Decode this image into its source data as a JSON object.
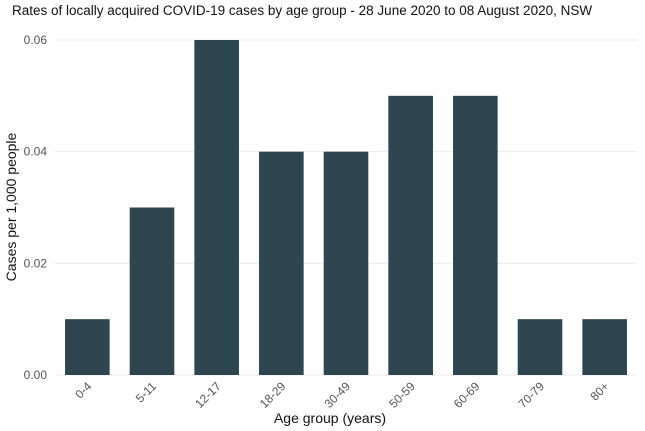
{
  "chart_data": {
    "type": "bar",
    "title": "Rates of locally acquired COVID-19 cases by age group - 28 June 2020 to 08 August 2020, NSW",
    "xlabel": "Age group (years)",
    "ylabel": "Cases per 1,000 people",
    "categories": [
      "0-4",
      "5-11",
      "12-17",
      "18-29",
      "30-49",
      "50-59",
      "60-69",
      "70-79",
      "80+"
    ],
    "values": [
      0.01,
      0.03,
      0.06,
      0.04,
      0.04,
      0.05,
      0.05,
      0.01,
      0.01
    ],
    "ylim": [
      0,
      0.06
    ],
    "yticks": [
      "0.00",
      "0.02",
      "0.04",
      "0.06"
    ],
    "grid": true,
    "bar_color": "#2e4650"
  }
}
